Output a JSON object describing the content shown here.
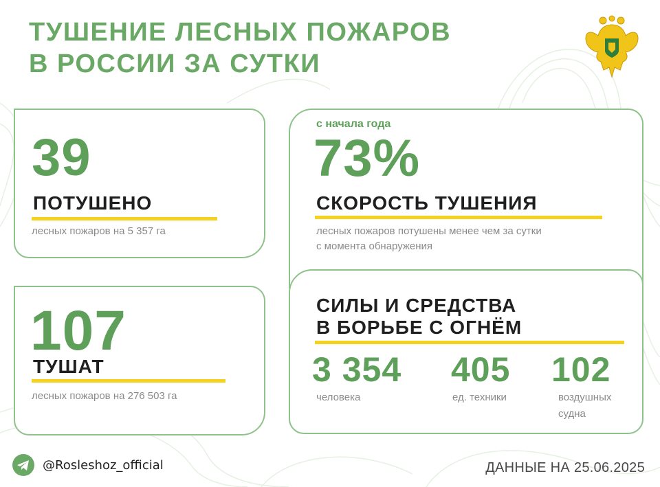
{
  "header": {
    "title_line1": "ТУШЕНИЕ ЛЕСНЫХ ПОЖАРОВ",
    "title_line2": "В РОССИИ ЗА СУТКИ"
  },
  "card_extinguished": {
    "value": "39",
    "label": "ПОТУШЕНО",
    "description": "лесных пожаров на 5 357 га"
  },
  "card_active": {
    "value": "107",
    "label": "ТУШАТ",
    "description": "лесных пожаров на 276 503 га"
  },
  "card_speed": {
    "caption": "с начала года",
    "value": "73%",
    "label": "СКОРОСТЬ ТУШЕНИЯ",
    "description_line1": "лесных пожаров потушены менее чем за сутки",
    "description_line2": "с момента обнаружения"
  },
  "card_forces": {
    "title_line1": "СИЛЫ И СРЕДСТВА",
    "title_line2": "В БОРЬБЕ С ОГНЁМ",
    "stats": [
      {
        "value": "3 354",
        "label_line1": "человека",
        "label_line2": ""
      },
      {
        "value": "405",
        "label_line1": "ед. техники",
        "label_line2": ""
      },
      {
        "value": "102",
        "label_line1": "воздушных",
        "label_line2": "судна"
      }
    ]
  },
  "footer": {
    "icon": "telegram-icon",
    "handle": "@Rosleshoz_official",
    "date": "ДАННЫЕ НА 25.06.2025"
  },
  "colors": {
    "green": "#5e9f5a",
    "border_green": "#8fc28b",
    "accent_yellow": "#f4d21f",
    "text_dark": "#1f1f1f",
    "text_gray": "#8a8a8a"
  }
}
